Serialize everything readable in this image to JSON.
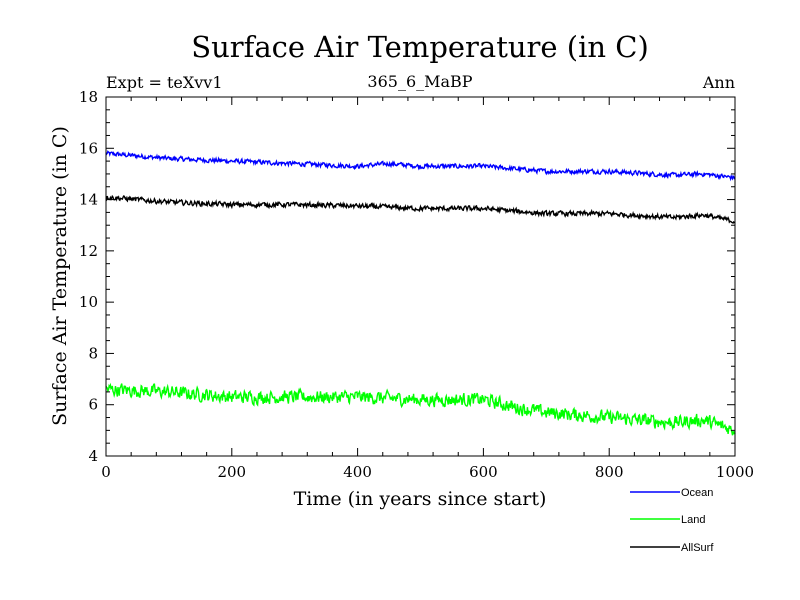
{
  "chart_data": {
    "type": "line",
    "title": "Surface Air Temperature (in C)",
    "subtitle": "365_6_MaBP",
    "left_label": "Expt = teXvv1",
    "right_label": "Ann",
    "xlabel": "Time (in years since start)",
    "ylabel": "Surface Air Temperature (in C)",
    "xlim": [
      0,
      1000
    ],
    "ylim": [
      4,
      18
    ],
    "xticks": [
      0,
      200,
      400,
      600,
      800,
      1000
    ],
    "yticks": [
      4,
      6,
      8,
      10,
      12,
      14,
      16,
      18
    ],
    "grid": false,
    "legend_position": "bottom-right",
    "series": [
      {
        "name": "Ocean",
        "color": "#0000ff",
        "x": [
          0,
          100,
          200,
          300,
          400,
          450,
          500,
          600,
          700,
          800,
          900,
          950,
          1000
        ],
        "values": [
          15.8,
          15.6,
          15.5,
          15.4,
          15.3,
          15.4,
          15.3,
          15.3,
          15.1,
          15.1,
          14.95,
          15.0,
          14.85
        ],
        "noise": 0.12
      },
      {
        "name": "Land",
        "color": "#00ff00",
        "x": [
          0,
          100,
          200,
          300,
          400,
          500,
          600,
          650,
          700,
          800,
          900,
          950,
          1000
        ],
        "values": [
          6.6,
          6.5,
          6.3,
          6.3,
          6.3,
          6.2,
          6.2,
          5.9,
          5.7,
          5.5,
          5.3,
          5.4,
          5.0
        ],
        "noise": 0.35
      },
      {
        "name": "AllSurf",
        "color": "#000000",
        "x": [
          0,
          100,
          200,
          300,
          400,
          500,
          600,
          700,
          800,
          900,
          950,
          1000
        ],
        "values": [
          14.1,
          13.9,
          13.8,
          13.8,
          13.75,
          13.65,
          13.65,
          13.45,
          13.45,
          13.3,
          13.4,
          13.15
        ],
        "noise": 0.13
      }
    ]
  }
}
